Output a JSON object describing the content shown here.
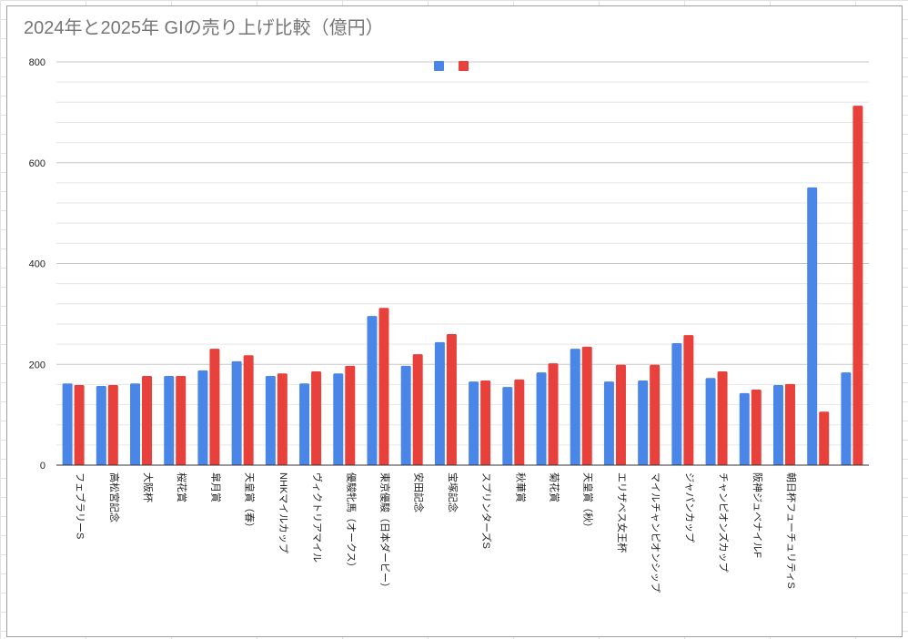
{
  "chart_data": {
    "type": "bar",
    "title": "2024年と2025年 GIの売り上げ比較（億円）",
    "xlabel": "",
    "ylabel": "",
    "ylim": [
      0,
      800
    ],
    "yticks": [
      "0",
      "200",
      "400",
      "600",
      "800"
    ],
    "minor_grid_step": 40,
    "grid": true,
    "legend": "top-center",
    "categories": [
      "フェブラリーS",
      "高松宮記念",
      "大阪杯",
      "桜花賞",
      "皐月賞",
      "天皇賞（春）",
      "NHKマイルカップ",
      "ヴィクトリアマイル",
      "優駿牝馬（オークス）",
      "東京優駿（日本ダービー）",
      "安田記念",
      "宝塚記念",
      "スプリンターズS",
      "秋華賞",
      "菊花賞",
      "天皇賞（秋）",
      "エリザベス女王杯",
      "マイルチャンピオンシップ",
      "ジャパンカップ",
      "チャンピオンズカップ",
      "阪神ジュベナイルF",
      "朝日杯フューチュリティS",
      "",
      ""
    ],
    "series": [
      {
        "color": "#4a86e8",
        "values": [
          162,
          157,
          162,
          177,
          188,
          206,
          177,
          162,
          182,
          296,
          197,
          244,
          166,
          155,
          184,
          231,
          166,
          168,
          242,
          173,
          143,
          159,
          551,
          184
        ]
      },
      {
        "color": "#e8403a",
        "values": [
          159,
          159,
          177,
          177,
          231,
          218,
          182,
          186,
          197,
          312,
          220,
          260,
          168,
          170,
          202,
          235,
          199,
          199,
          258,
          186,
          150,
          161,
          106,
          713
        ]
      }
    ]
  }
}
